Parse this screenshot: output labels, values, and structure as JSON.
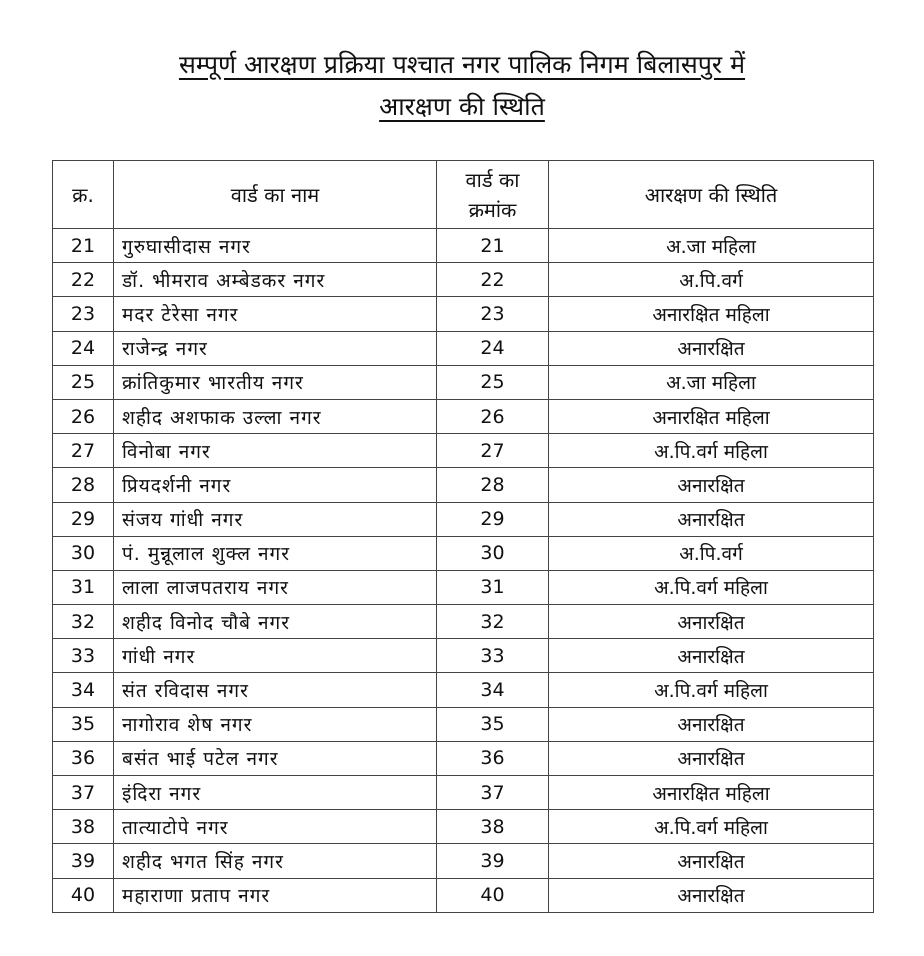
{
  "title_line1": "सम्पूर्ण आरक्षण प्रक्रिया पश्चात नगर पालिक निगम बिलासपुर में",
  "title_line2": "आरक्षण की स्थिति",
  "headers": {
    "serial": "क्र.",
    "ward_name": "वार्ड का नाम",
    "ward_no_line1": "वार्ड का",
    "ward_no_line2": "क्रमांक",
    "status": "आरक्षण की स्थिति"
  },
  "rows": [
    [
      "21",
      "गुरुघासीदास नगर",
      "21",
      "अ.जा महिला"
    ],
    [
      "22",
      "डॉ. भीमराव अम्बेडकर नगर",
      "22",
      "अ.पि.वर्ग"
    ],
    [
      "23",
      "मदर टेरेसा नगर",
      "23",
      "अनारक्षित महिला"
    ],
    [
      "24",
      "राजेन्द्र नगर",
      "24",
      "अनारक्षित"
    ],
    [
      "25",
      "क्रांतिकुमार भारतीय नगर",
      "25",
      "अ.जा महिला"
    ],
    [
      "26",
      "शहीद अशफाक उल्ला नगर",
      "26",
      "अनारक्षित महिला"
    ],
    [
      "27",
      "विनोबा नगर",
      "27",
      "अ.पि.वर्ग महिला"
    ],
    [
      "28",
      "प्रियदर्शनी नगर",
      "28",
      "अनारक्षित"
    ],
    [
      "29",
      "संजय गांधी नगर",
      "29",
      "अनारक्षित"
    ],
    [
      "30",
      "पं. मुन्नूलाल शुक्ल नगर",
      "30",
      "अ.पि.वर्ग"
    ],
    [
      "31",
      "लाला लाजपतराय नगर",
      "31",
      "अ.पि.वर्ग महिला"
    ],
    [
      "32",
      "शहीद विनोद चौबे नगर",
      "32",
      "अनारक्षित"
    ],
    [
      "33",
      "गांधी नगर",
      "33",
      "अनारक्षित"
    ],
    [
      "34",
      "संत रविदास नगर",
      "34",
      "अ.पि.वर्ग महिला"
    ],
    [
      "35",
      "नागोराव शेष नगर",
      "35",
      "अनारक्षित"
    ],
    [
      "36",
      "बसंत भाई पटेल नगर",
      "36",
      "अनारक्षित"
    ],
    [
      "37",
      "इंदिरा नगर",
      "37",
      "अनारक्षित महिला"
    ],
    [
      "38",
      "तात्याटोपे नगर",
      "38",
      "अ.पि.वर्ग महिला"
    ],
    [
      "39",
      "शहीद भगत सिंह नगर",
      "39",
      "अनारक्षित"
    ],
    [
      "40",
      "महाराणा प्रताप नगर",
      "40",
      "अनारक्षित"
    ]
  ]
}
